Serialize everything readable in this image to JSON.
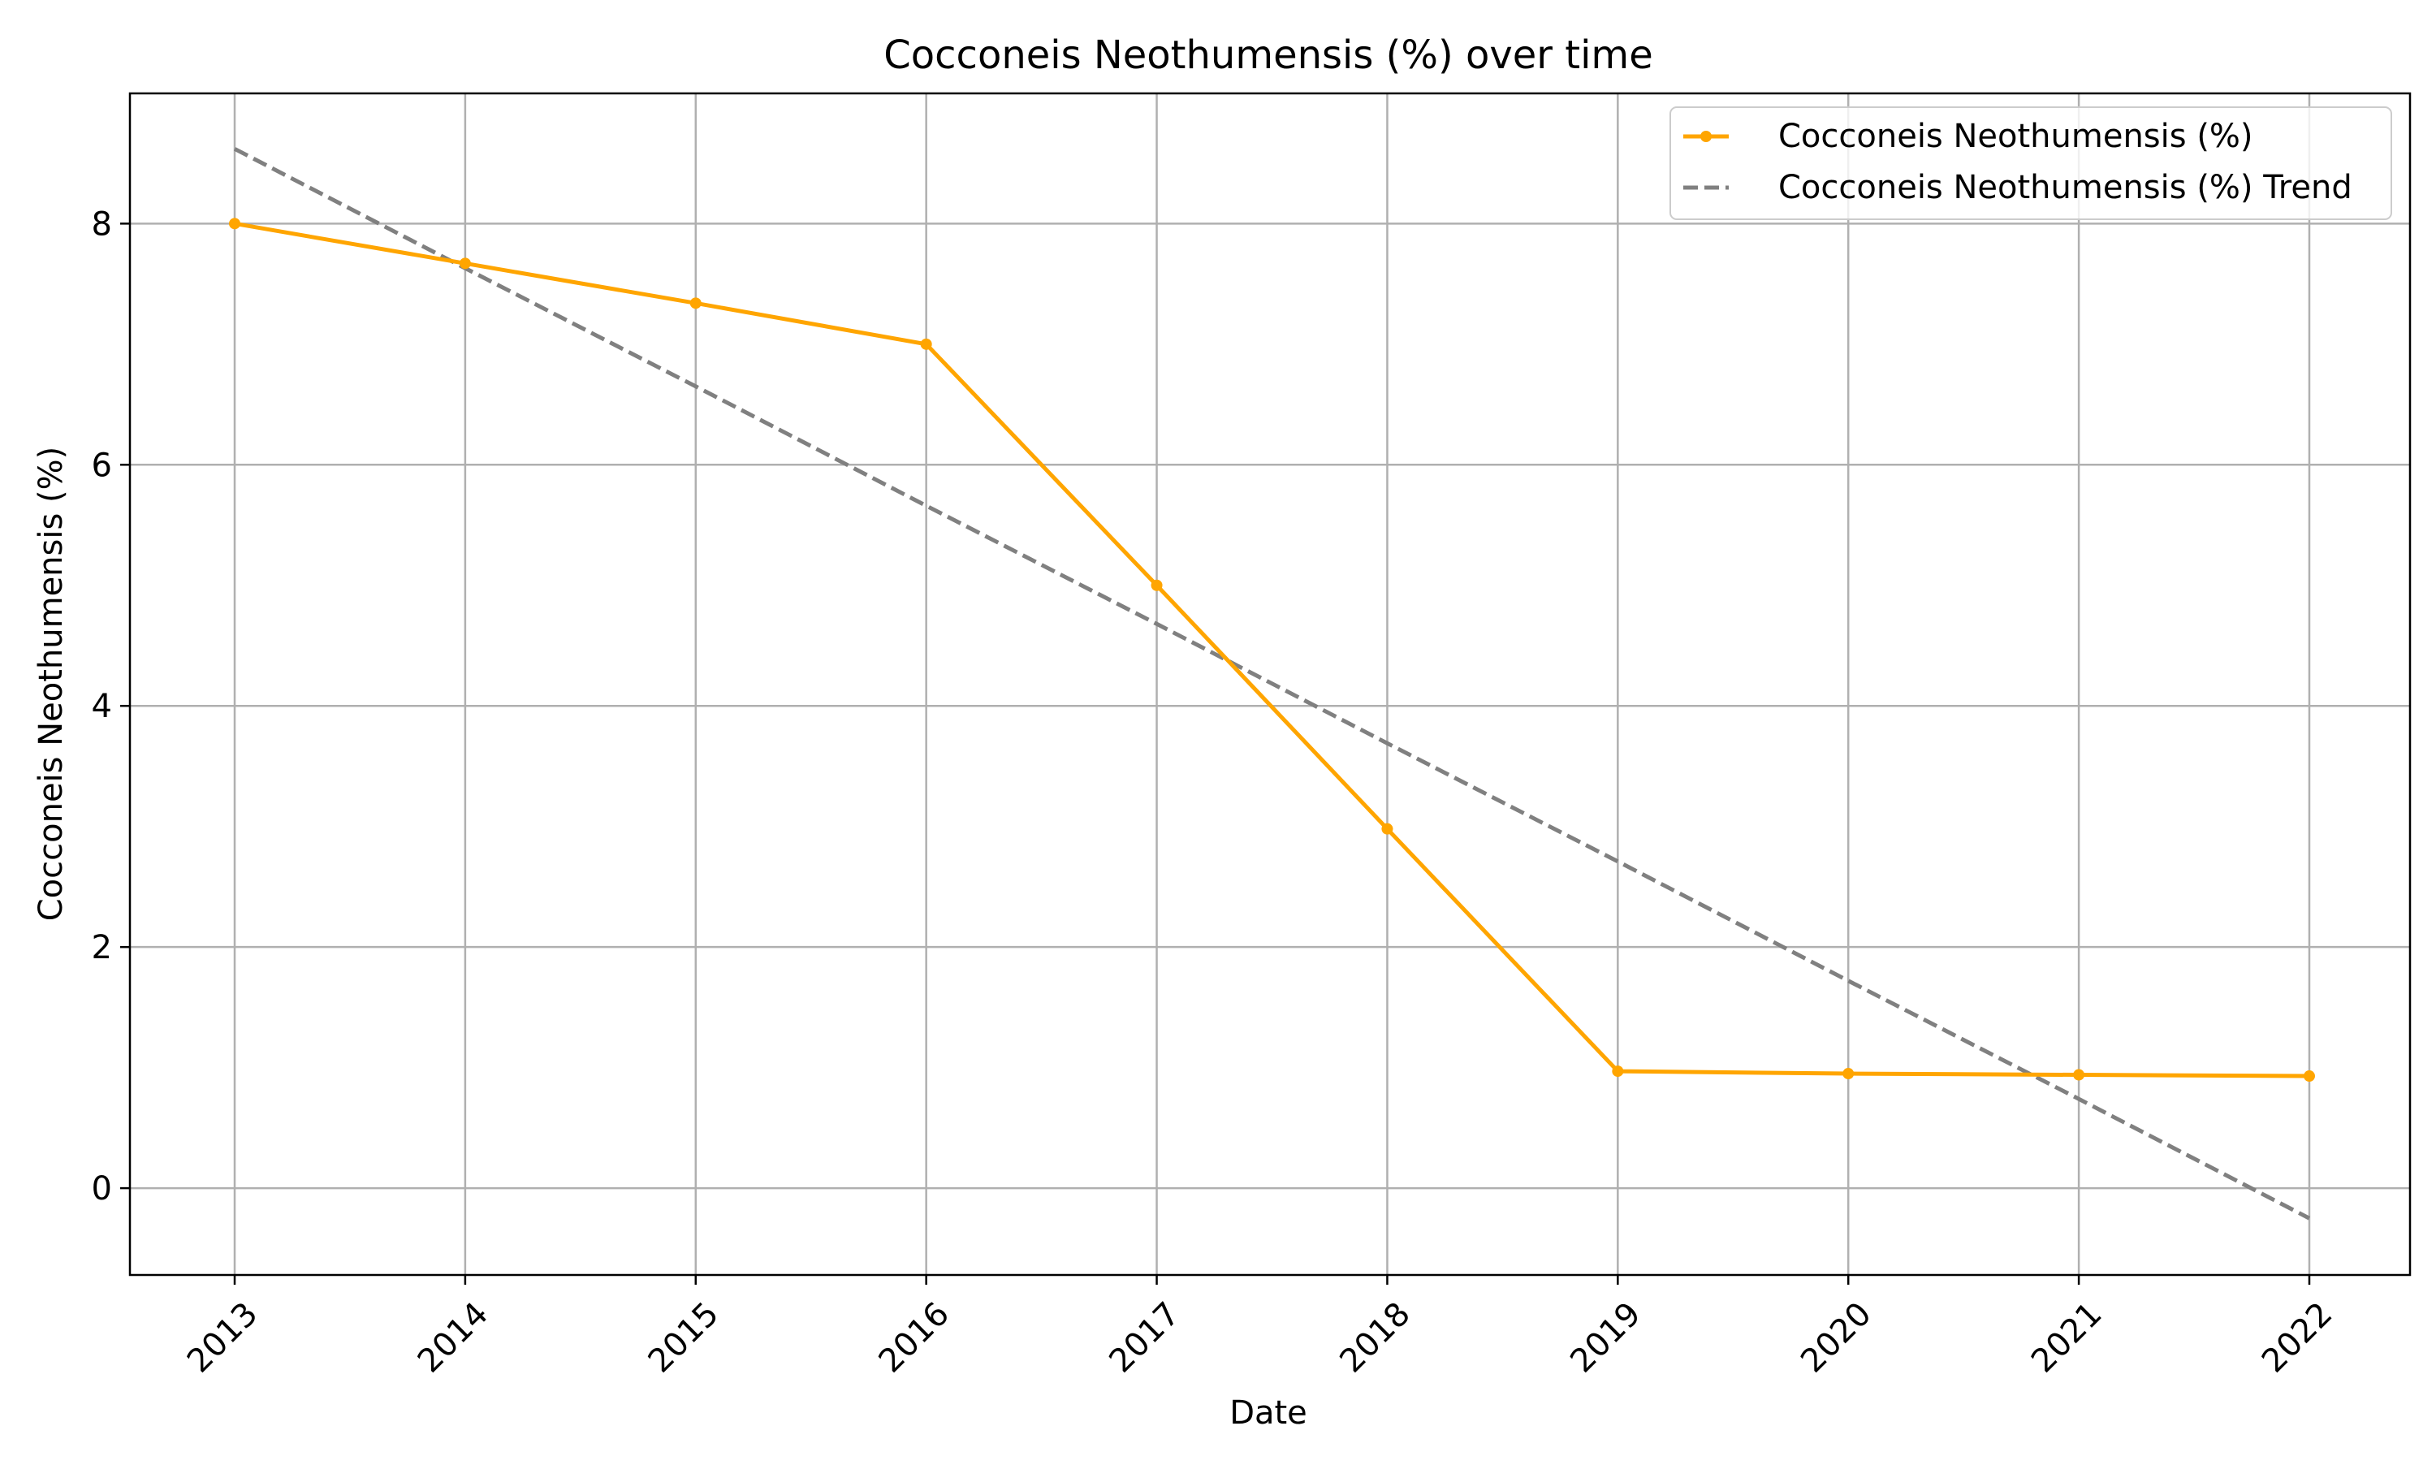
{
  "chart_data": {
    "type": "line",
    "title": "Cocconeis Neothumensis (%) over time",
    "xlabel": "Date",
    "ylabel": "Cocconeis Neothumensis (%)",
    "categories": [
      "2013",
      "2014",
      "2015",
      "2016",
      "2017",
      "2018",
      "2019",
      "2020",
      "2021",
      "2022"
    ],
    "yticks": [
      0,
      2,
      4,
      6,
      8
    ],
    "ylim": [
      -0.72,
      9.08
    ],
    "grid": true,
    "legend_position": "top-right",
    "series": [
      {
        "name": "Cocconeis Neothumensis (%)",
        "values": [
          8.0,
          7.67,
          7.34,
          7.0,
          5.0,
          2.98,
          0.97,
          0.95,
          0.94,
          0.93
        ],
        "color": "#ffa500",
        "style": "solid",
        "marker": "circle"
      },
      {
        "name": "Cocconeis Neothumensis (%) Trend",
        "values": [
          8.62,
          7.63,
          6.65,
          5.66,
          4.68,
          3.69,
          2.71,
          1.72,
          0.74,
          -0.25
        ],
        "color": "#808080",
        "style": "dashed",
        "marker": "none"
      }
    ]
  }
}
